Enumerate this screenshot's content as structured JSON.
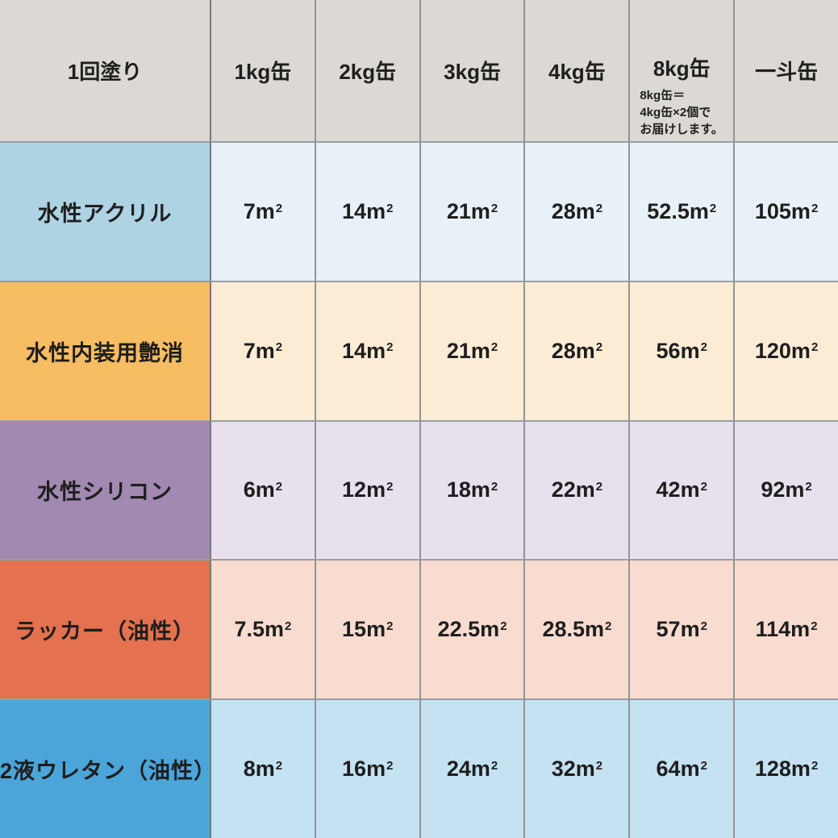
{
  "table": {
    "header": {
      "title": "1回塗り",
      "columns": [
        "1kg缶",
        "2kg缶",
        "3kg缶",
        "4kg缶",
        "8kg缶",
        "一斗缶"
      ],
      "note_lines": [
        "8kg缶＝",
        "4kg缶×2個で",
        "お届けします。"
      ]
    },
    "unit_base": "m",
    "unit_exp": "2",
    "rows": [
      {
        "label": "水性アクリル",
        "values": [
          "7",
          "14",
          "21",
          "28",
          "52.5",
          "105"
        ],
        "label_bg": "#aed3e3",
        "cell_bg": "#e8f1f7"
      },
      {
        "label": "水性内装用艶消",
        "values": [
          "7",
          "14",
          "21",
          "28",
          "56",
          "120"
        ],
        "label_bg": "#f7bd63",
        "cell_bg": "#fcecd5"
      },
      {
        "label": "水性シリコン",
        "values": [
          "6",
          "12",
          "18",
          "22",
          "42",
          "92"
        ],
        "label_bg": "#a189b1",
        "cell_bg": "#e8e0ec"
      },
      {
        "label": "ラッカー（油性）",
        "values": [
          "7.5",
          "15",
          "22.5",
          "28.5",
          "57",
          "114"
        ],
        "label_bg": "#e4714f",
        "cell_bg": "#f8dcd0"
      },
      {
        "label": "2液ウレタン（油性）",
        "values": [
          "8",
          "16",
          "24",
          "32",
          "64",
          "128"
        ],
        "label_bg": "#4ba5d9",
        "cell_bg": "#c5e2f2"
      }
    ],
    "colors": {
      "header_bg": "#dcd9d4",
      "grid_line_vertical": "#8f9496",
      "grid_line_horizontal": "#9a9da0",
      "label_divider": "#77797b",
      "text": "#1e1e1e"
    }
  },
  "chart_data": {
    "type": "table",
    "title": "1回塗り",
    "columns": [
      "1kg缶",
      "2kg缶",
      "3kg缶",
      "4kg缶",
      "8kg缶",
      "一斗缶"
    ],
    "unit": "㎡",
    "rows": [
      {
        "name": "水性アクリル",
        "values": [
          7,
          14,
          21,
          28,
          52.5,
          105
        ]
      },
      {
        "name": "水性内装用艶消",
        "values": [
          7,
          14,
          21,
          28,
          56,
          120
        ]
      },
      {
        "name": "水性シリコン",
        "values": [
          6,
          12,
          18,
          22,
          42,
          92
        ]
      },
      {
        "name": "ラッカー（油性）",
        "values": [
          7.5,
          15,
          22.5,
          28.5,
          57,
          114
        ]
      },
      {
        "name": "2液ウレタン（油性）",
        "values": [
          8,
          16,
          24,
          32,
          64,
          128
        ]
      }
    ],
    "note": "8kg缶＝4kg缶×2個でお届けします。"
  }
}
